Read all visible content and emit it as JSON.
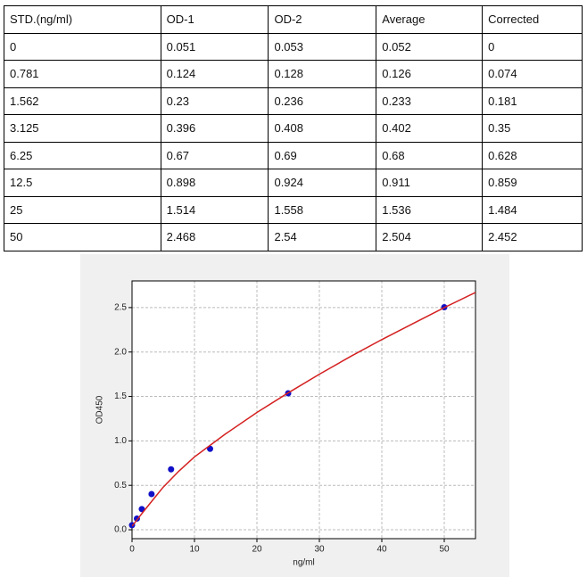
{
  "table": {
    "header": [
      "STD.(ng/ml)",
      "OD-1",
      "OD-2",
      "Average",
      "Corrected"
    ],
    "rows": [
      [
        "0",
        "0.051",
        "0.053",
        "0.052",
        "0"
      ],
      [
        "0.781",
        "0.124",
        "0.128",
        "0.126",
        "0.074"
      ],
      [
        "1.562",
        "0.23",
        "0.236",
        "0.233",
        "0.181"
      ],
      [
        "3.125",
        "0.396",
        "0.408",
        "0.402",
        "0.35"
      ],
      [
        "6.25",
        "0.67",
        "0.69",
        "0.68",
        "0.628"
      ],
      [
        "12.5",
        "0.898",
        "0.924",
        "0.911",
        "0.859"
      ],
      [
        "25",
        "1.514",
        "1.558",
        "1.536",
        "1.484"
      ],
      [
        "50",
        "2.468",
        "2.54",
        "2.504",
        "2.452"
      ]
    ]
  },
  "chart_data": {
    "type": "scatter",
    "x_label": "ng/ml",
    "y_label": "OD450",
    "xlim": [
      0,
      55
    ],
    "ylim": [
      -0.1,
      2.8
    ],
    "grid": true,
    "xticks": [
      0,
      10,
      20,
      30,
      40,
      50
    ],
    "yticks": [
      {
        "value": 0,
        "label": "0.0"
      },
      0.5,
      {
        "value": 1,
        "label": "1.0"
      },
      1.5,
      {
        "value": 2,
        "label": "2.0"
      },
      2.5
    ],
    "series": [
      {
        "type": "scatter",
        "color": "#1010c8",
        "x": [
          0,
          0.781,
          1.562,
          3.125,
          6.25,
          12.5,
          25,
          50
        ],
        "values": [
          0.052,
          0.126,
          0.233,
          0.402,
          0.68,
          0.911,
          1.536,
          2.504
        ]
      },
      {
        "type": "line",
        "color": "#d42020",
        "x": [
          0,
          1,
          2,
          3.5,
          5,
          7.5,
          10,
          15,
          20,
          25,
          30,
          35,
          40,
          45,
          50,
          55
        ],
        "values": [
          0.04,
          0.13,
          0.22,
          0.35,
          0.48,
          0.66,
          0.82,
          1.08,
          1.32,
          1.54,
          1.75,
          1.95,
          2.14,
          2.32,
          2.5,
          2.67
        ]
      }
    ]
  }
}
